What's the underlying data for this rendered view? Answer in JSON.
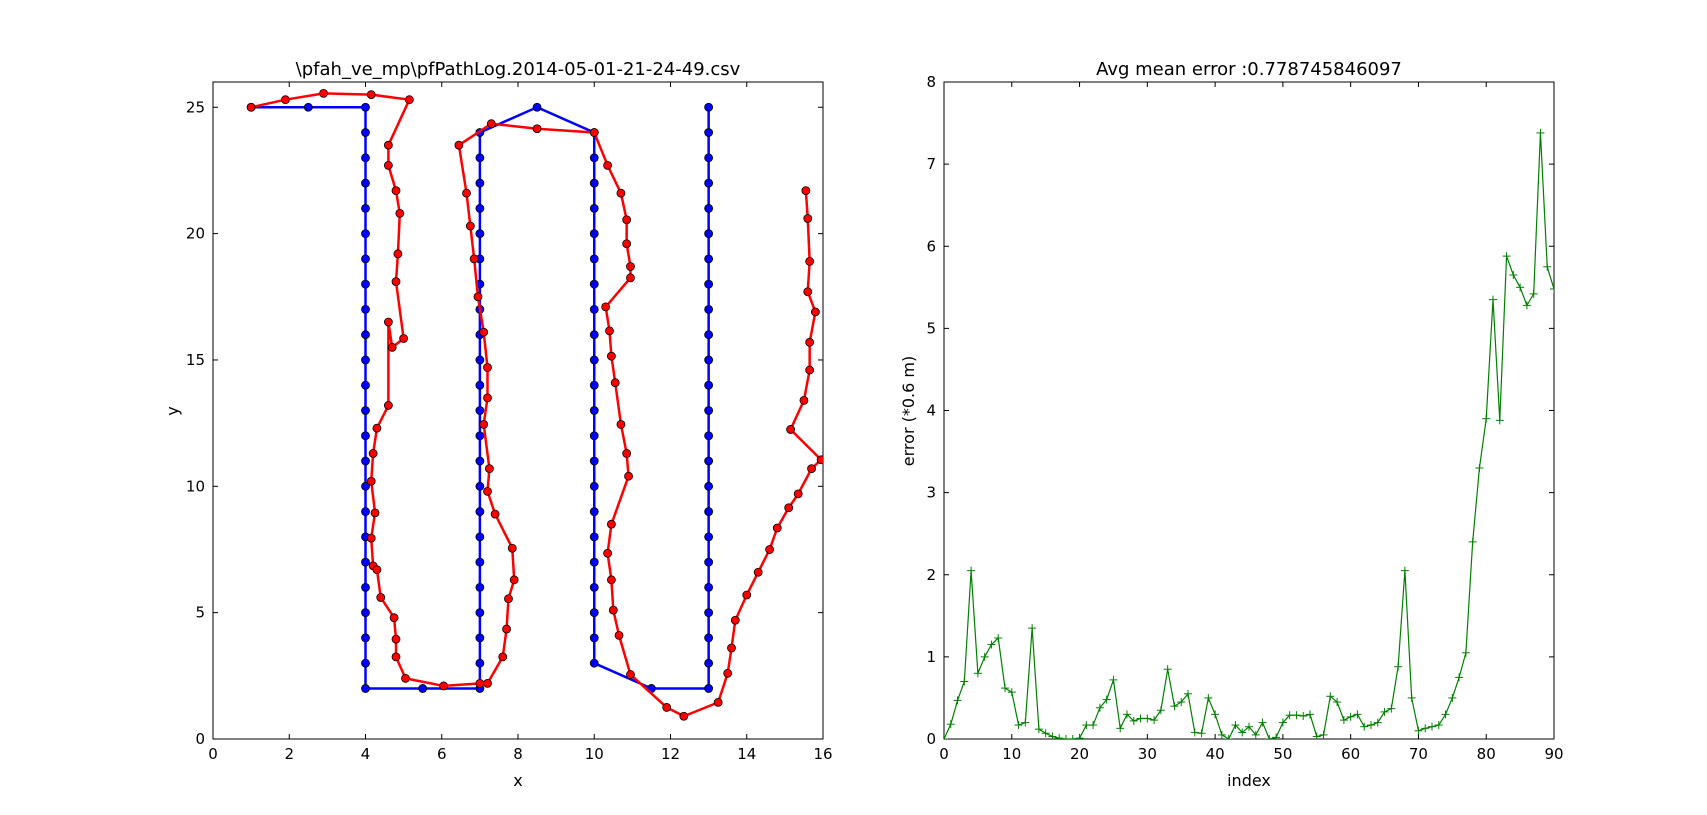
{
  "chart_data": [
    {
      "type": "line",
      "title": "\\pfah_ve_mp\\pfPathLog.2014-05-01-21-24-49.csv",
      "xlabel": "x",
      "ylabel": "y",
      "xlim": [
        0,
        16
      ],
      "ylim": [
        0,
        26
      ],
      "xticks": [
        "0",
        "2",
        "4",
        "6",
        "8",
        "10",
        "12",
        "14",
        "16"
      ],
      "yticks": [
        "0",
        "5",
        "10",
        "15",
        "20",
        "25"
      ],
      "grid": false,
      "legend": "none",
      "series": [
        {
          "color": "#0000ff",
          "marker": "circle",
          "points": [
            [
              1,
              25
            ],
            [
              2.5,
              25
            ],
            [
              4,
              25
            ],
            [
              4,
              24
            ],
            [
              4,
              23
            ],
            [
              4,
              22
            ],
            [
              4,
              21
            ],
            [
              4,
              20
            ],
            [
              4,
              19
            ],
            [
              4,
              18
            ],
            [
              4,
              17
            ],
            [
              4,
              16
            ],
            [
              4,
              15
            ],
            [
              4,
              14
            ],
            [
              4,
              13
            ],
            [
              4,
              12
            ],
            [
              4,
              11
            ],
            [
              4,
              10
            ],
            [
              4,
              9
            ],
            [
              4,
              8
            ],
            [
              4,
              7
            ],
            [
              4,
              6
            ],
            [
              4,
              5
            ],
            [
              4,
              4
            ],
            [
              4,
              3
            ],
            [
              4,
              2
            ],
            [
              5.5,
              2
            ],
            [
              7,
              2
            ],
            [
              7,
              3
            ],
            [
              7,
              4
            ],
            [
              7,
              5
            ],
            [
              7,
              6
            ],
            [
              7,
              7
            ],
            [
              7,
              8
            ],
            [
              7,
              9
            ],
            [
              7,
              10
            ],
            [
              7,
              11
            ],
            [
              7,
              12
            ],
            [
              7,
              13
            ],
            [
              7,
              14
            ],
            [
              7,
              15
            ],
            [
              7,
              16
            ],
            [
              7,
              17
            ],
            [
              7,
              18
            ],
            [
              7,
              19
            ],
            [
              7,
              20
            ],
            [
              7,
              21
            ],
            [
              7,
              22
            ],
            [
              7,
              23
            ],
            [
              7,
              24
            ],
            [
              8.5,
              25
            ],
            [
              10,
              24
            ],
            [
              10,
              23
            ],
            [
              10,
              22
            ],
            [
              10,
              21
            ],
            [
              10,
              20
            ],
            [
              10,
              19
            ],
            [
              10,
              18
            ],
            [
              10,
              17
            ],
            [
              10,
              16
            ],
            [
              10,
              15
            ],
            [
              10,
              14
            ],
            [
              10,
              13
            ],
            [
              10,
              12
            ],
            [
              10,
              11
            ],
            [
              10,
              10
            ],
            [
              10,
              9
            ],
            [
              10,
              8
            ],
            [
              10,
              7
            ],
            [
              10,
              6
            ],
            [
              10,
              5
            ],
            [
              10,
              4
            ],
            [
              10,
              3
            ],
            [
              11.5,
              2
            ],
            [
              13,
              2
            ],
            [
              13,
              3
            ],
            [
              13,
              4
            ],
            [
              13,
              5
            ],
            [
              13,
              6
            ],
            [
              13,
              7
            ],
            [
              13,
              8
            ],
            [
              13,
              9
            ],
            [
              13,
              10
            ],
            [
              13,
              11
            ],
            [
              13,
              12
            ],
            [
              13,
              13
            ],
            [
              13,
              14
            ],
            [
              13,
              15
            ],
            [
              13,
              16
            ],
            [
              13,
              17
            ],
            [
              13,
              18
            ],
            [
              13,
              19
            ],
            [
              13,
              20
            ],
            [
              13,
              21
            ],
            [
              13,
              22
            ],
            [
              13,
              23
            ],
            [
              13,
              24
            ],
            [
              13,
              25
            ]
          ]
        },
        {
          "color": "#ff0000",
          "marker": "circle",
          "points": [
            [
              1,
              25
            ],
            [
              1.9,
              25.3
            ],
            [
              2.9,
              25.55
            ],
            [
              4.15,
              25.5
            ],
            [
              5.15,
              25.3
            ],
            [
              4.6,
              23.5
            ],
            [
              4.6,
              22.7
            ],
            [
              4.8,
              21.7
            ],
            [
              4.9,
              20.8
            ],
            [
              4.85,
              19.2
            ],
            [
              4.8,
              18.1
            ],
            [
              5,
              15.85
            ],
            [
              4.7,
              15.5
            ],
            [
              4.6,
              16.5
            ],
            [
              4.6,
              13.2
            ],
            [
              4.3,
              12.3
            ],
            [
              4.2,
              11.3
            ],
            [
              4.15,
              10.2
            ],
            [
              4.25,
              8.95
            ],
            [
              4.15,
              7.95
            ],
            [
              4.2,
              6.85
            ],
            [
              4.3,
              6.7
            ],
            [
              4.4,
              5.6
            ],
            [
              4.75,
              4.8
            ],
            [
              4.8,
              3.95
            ],
            [
              4.8,
              3.25
            ],
            [
              5.05,
              2.4
            ],
            [
              6.05,
              2.1
            ],
            [
              7,
              2.2
            ],
            [
              7.2,
              2.2
            ],
            [
              7.6,
              3.25
            ],
            [
              7.7,
              4.35
            ],
            [
              7.75,
              5.55
            ],
            [
              7.9,
              6.3
            ],
            [
              7.85,
              7.55
            ],
            [
              7.4,
              8.9
            ],
            [
              7.2,
              9.8
            ],
            [
              7.25,
              10.7
            ],
            [
              7.1,
              12.45
            ],
            [
              7.2,
              13.5
            ],
            [
              7.2,
              14.7
            ],
            [
              7.1,
              16.1
            ],
            [
              6.95,
              17.5
            ],
            [
              6.85,
              19
            ],
            [
              6.75,
              20.3
            ],
            [
              6.65,
              21.6
            ],
            [
              6.45,
              23.5
            ],
            [
              7.3,
              24.35
            ],
            [
              8.5,
              24.15
            ],
            [
              10,
              24
            ],
            [
              10.35,
              22.7
            ],
            [
              10.7,
              21.6
            ],
            [
              10.85,
              20.55
            ],
            [
              10.85,
              19.6
            ],
            [
              10.95,
              18.7
            ],
            [
              10.95,
              18.25
            ],
            [
              10.3,
              17.1
            ],
            [
              10.4,
              16.15
            ],
            [
              10.45,
              15.15
            ],
            [
              10.55,
              14.1
            ],
            [
              10.7,
              12.45
            ],
            [
              10.85,
              11.3
            ],
            [
              10.9,
              10.4
            ],
            [
              10.45,
              8.5
            ],
            [
              10.35,
              7.35
            ],
            [
              10.45,
              6.3
            ],
            [
              10.5,
              5.1
            ],
            [
              10.65,
              4.1
            ],
            [
              10.95,
              2.55
            ],
            [
              11.9,
              1.25
            ],
            [
              12.35,
              0.9
            ],
            [
              13.25,
              1.45
            ],
            [
              13.5,
              2.6
            ],
            [
              13.6,
              3.6
            ],
            [
              13.7,
              4.7
            ],
            [
              14,
              5.7
            ],
            [
              14.3,
              6.6
            ],
            [
              14.6,
              7.5
            ],
            [
              14.8,
              8.35
            ],
            [
              15.1,
              9.15
            ],
            [
              15.35,
              9.7
            ],
            [
              15.7,
              10.7
            ],
            [
              15.95,
              11.05
            ],
            [
              15.15,
              12.25
            ],
            [
              15.5,
              13.4
            ],
            [
              15.65,
              14.6
            ],
            [
              15.65,
              15.7
            ],
            [
              15.8,
              16.9
            ],
            [
              15.6,
              17.7
            ],
            [
              15.65,
              18.9
            ],
            [
              15.6,
              20.6
            ],
            [
              15.55,
              21.7
            ]
          ]
        }
      ]
    },
    {
      "type": "line",
      "title": "Avg mean error :0.778745846097",
      "xlabel": "index",
      "ylabel": "error (*0.6 m)",
      "xlim": [
        0,
        90
      ],
      "ylim": [
        0,
        8
      ],
      "xticks": [
        "0",
        "10",
        "20",
        "30",
        "40",
        "50",
        "60",
        "70",
        "80",
        "90"
      ],
      "yticks": [
        "0",
        "1",
        "2",
        "3",
        "4",
        "5",
        "6",
        "7",
        "8"
      ],
      "grid": false,
      "legend": "none",
      "series": [
        {
          "color": "#008000",
          "marker": "plus",
          "x": [
            0,
            1,
            2,
            3,
            4,
            5,
            6,
            7,
            8,
            9,
            10,
            11,
            12,
            13,
            14,
            15,
            16,
            17,
            18,
            19,
            20,
            21,
            22,
            23,
            24,
            25,
            26,
            27,
            28,
            29,
            30,
            31,
            32,
            33,
            34,
            35,
            36,
            37,
            38,
            39,
            40,
            41,
            42,
            43,
            44,
            45,
            46,
            47,
            48,
            49,
            50,
            51,
            52,
            53,
            54,
            55,
            56,
            57,
            58,
            59,
            60,
            61,
            62,
            63,
            64,
            65,
            66,
            67,
            68,
            69,
            70,
            71,
            72,
            73,
            74,
            75,
            76,
            77,
            78,
            79,
            80,
            81,
            82,
            83,
            84,
            85,
            86,
            87,
            88,
            89,
            90
          ],
          "values": [
            0,
            0.18,
            0.47,
            0.7,
            2.05,
            0.8,
            1.0,
            1.15,
            1.23,
            0.62,
            0.57,
            0.17,
            0.2,
            1.35,
            0.12,
            0.07,
            0.03,
            0.01,
            0,
            0,
            0.01,
            0.17,
            0.17,
            0.38,
            0.48,
            0.72,
            0.13,
            0.3,
            0.22,
            0.25,
            0.25,
            0.23,
            0.35,
            0.85,
            0.4,
            0.45,
            0.55,
            0.08,
            0.07,
            0.5,
            0.3,
            0.05,
            0,
            0.17,
            0.08,
            0.15,
            0.05,
            0.2,
            0,
            0.02,
            0.2,
            0.29,
            0.29,
            0.28,
            0.3,
            0.03,
            0.05,
            0.52,
            0.45,
            0.23,
            0.27,
            0.3,
            0.15,
            0.17,
            0.2,
            0.33,
            0.37,
            0.88,
            2.05,
            0.5,
            0.1,
            0.13,
            0.15,
            0.17,
            0.3,
            0.5,
            0.75,
            1.05,
            2.4,
            3.3,
            3.9,
            5.35,
            3.88,
            5.88,
            5.65,
            5.5,
            5.28,
            5.42,
            7.38,
            5.75,
            5.48
          ]
        }
      ]
    }
  ]
}
